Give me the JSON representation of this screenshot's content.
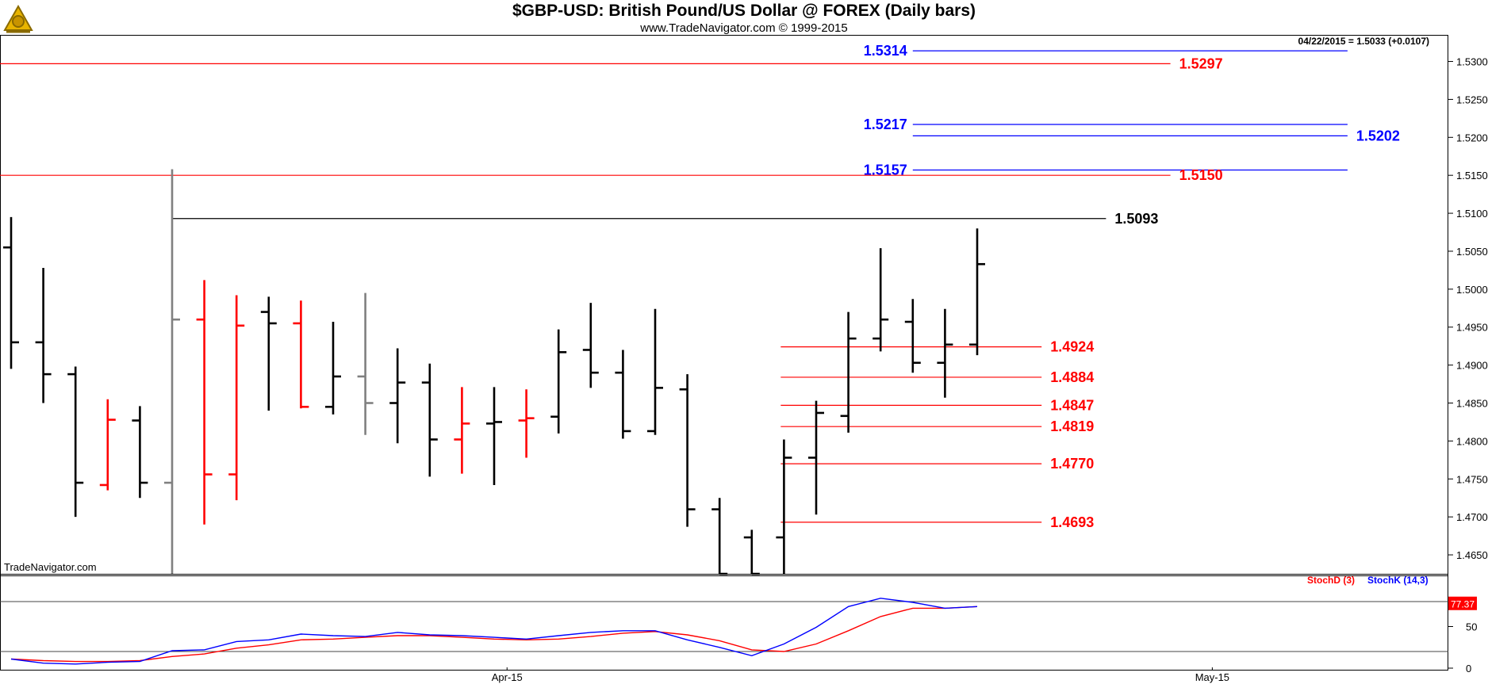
{
  "header": {
    "title": "$GBP-USD:  British Pound/US Dollar @ FOREX  (Daily bars)",
    "subtitle": "www.TradeNavigator.com © 1999-2015"
  },
  "readout": "04/22/2015 = 1.5033 (+0.0107)",
  "watermark": "TradeNavigator.com",
  "colors": {
    "up": "#000000",
    "down": "#ff0000",
    "neutral": "#808080",
    "resistance": "#0000ff",
    "support": "#ff0000",
    "high_line": "#000000",
    "stochD": "#ff0000",
    "stochK": "#0000ff"
  },
  "chart_data": [
    {
      "type": "ohlc",
      "title": "$GBP-USD:  British Pound/US Dollar @ FOREX  (Daily bars)",
      "ylim": [
        1.4625,
        1.5335
      ],
      "yticks": [
        "1.5300",
        "1.5250",
        "1.5200",
        "1.5150",
        "1.5100",
        "1.5050",
        "1.5000",
        "1.4950",
        "1.4900",
        "1.4850",
        "1.4800",
        "1.4750",
        "1.4700",
        "1.4650"
      ],
      "xticks": [
        {
          "label": "Apr-15",
          "bar": 15.4
        },
        {
          "label": "May-15",
          "bar": 37.3
        }
      ],
      "bars": [
        {
          "o": 1.5055,
          "h": 1.5095,
          "l": 1.4895,
          "c": 1.493,
          "dir": "up"
        },
        {
          "o": 1.493,
          "h": 1.5028,
          "l": 1.485,
          "c": 1.4888,
          "dir": "up"
        },
        {
          "o": 1.4888,
          "h": 1.4898,
          "l": 1.47,
          "c": 1.4745,
          "dir": "up"
        },
        {
          "o": 1.4742,
          "h": 1.4855,
          "l": 1.4735,
          "c": 1.4828,
          "dir": "down"
        },
        {
          "o": 1.4827,
          "h": 1.4846,
          "l": 1.4725,
          "c": 1.4745,
          "dir": "up"
        },
        {
          "o": 1.4745,
          "h": 1.5158,
          "l": 1.4625,
          "c": 1.496,
          "dir": "neutral"
        },
        {
          "o": 1.496,
          "h": 1.5012,
          "l": 1.469,
          "c": 1.4756,
          "dir": "down"
        },
        {
          "o": 1.4756,
          "h": 1.4992,
          "l": 1.4722,
          "c": 1.4952,
          "dir": "down"
        },
        {
          "o": 1.497,
          "h": 1.499,
          "l": 1.484,
          "c": 1.4955,
          "dir": "up"
        },
        {
          "o": 1.4955,
          "h": 1.4985,
          "l": 1.4843,
          "c": 1.4845,
          "dir": "down"
        },
        {
          "o": 1.4845,
          "h": 1.4957,
          "l": 1.4835,
          "c": 1.4885,
          "dir": "up"
        },
        {
          "o": 1.4885,
          "h": 1.4995,
          "l": 1.4808,
          "c": 1.485,
          "dir": "neutral"
        },
        {
          "o": 1.485,
          "h": 1.4922,
          "l": 1.4797,
          "c": 1.4877,
          "dir": "up"
        },
        {
          "o": 1.4877,
          "h": 1.4902,
          "l": 1.4753,
          "c": 1.4802,
          "dir": "up"
        },
        {
          "o": 1.4802,
          "h": 1.4871,
          "l": 1.4757,
          "c": 1.4823,
          "dir": "down"
        },
        {
          "o": 1.4823,
          "h": 1.4871,
          "l": 1.4742,
          "c": 1.4825,
          "dir": "up"
        },
        {
          "o": 1.4827,
          "h": 1.4868,
          "l": 1.4778,
          "c": 1.483,
          "dir": "down"
        },
        {
          "o": 1.4832,
          "h": 1.4947,
          "l": 1.481,
          "c": 1.4917,
          "dir": "up"
        },
        {
          "o": 1.492,
          "h": 1.4982,
          "l": 1.487,
          "c": 1.489,
          "dir": "up"
        },
        {
          "o": 1.489,
          "h": 1.492,
          "l": 1.4803,
          "c": 1.4813,
          "dir": "up"
        },
        {
          "o": 1.4813,
          "h": 1.4974,
          "l": 1.4808,
          "c": 1.487,
          "dir": "up"
        },
        {
          "o": 1.4868,
          "h": 1.4888,
          "l": 1.4687,
          "c": 1.471,
          "dir": "up"
        },
        {
          "o": 1.471,
          "h": 1.4725,
          "l": 1.4625,
          "c": 1.4625,
          "dir": "up"
        },
        {
          "o": 1.4673,
          "h": 1.4683,
          "l": 1.4625,
          "c": 1.4625,
          "dir": "up"
        },
        {
          "o": 1.4673,
          "h": 1.4802,
          "l": 1.4625,
          "c": 1.4778,
          "dir": "up"
        },
        {
          "o": 1.4778,
          "h": 1.4853,
          "l": 1.4703,
          "c": 1.4837,
          "dir": "up"
        },
        {
          "o": 1.4833,
          "h": 1.497,
          "l": 1.4811,
          "c": 1.4935,
          "dir": "up"
        },
        {
          "o": 1.4935,
          "h": 1.5054,
          "l": 1.4918,
          "c": 1.496,
          "dir": "up"
        },
        {
          "o": 1.4957,
          "h": 1.4987,
          "l": 1.489,
          "c": 1.4903,
          "dir": "up"
        },
        {
          "o": 1.4903,
          "h": 1.4974,
          "l": 1.4857,
          "c": 1.4927,
          "dir": "up"
        },
        {
          "o": 1.4927,
          "h": 1.508,
          "l": 1.4913,
          "c": 1.5033,
          "dir": "up"
        }
      ],
      "levels": [
        {
          "value": 1.5314,
          "label": "1.5314",
          "kind": "resistance",
          "from_bar": 28.0,
          "to_bar": 41.5,
          "label_side": "left"
        },
        {
          "value": 1.5297,
          "label": "1.5297",
          "kind": "support",
          "from_bar": -0.5,
          "to_bar": 36.0,
          "label_side": "right"
        },
        {
          "value": 1.5217,
          "label": "1.5217",
          "kind": "resistance",
          "from_bar": 28.0,
          "to_bar": 41.5,
          "label_side": "left"
        },
        {
          "value": 1.5202,
          "label": "1.5202",
          "kind": "resistance",
          "from_bar": 28.0,
          "to_bar": 41.5,
          "label_side": "right"
        },
        {
          "value": 1.5157,
          "label": "1.5157",
          "kind": "resistance",
          "from_bar": 28.0,
          "to_bar": 41.5,
          "label_side": "left"
        },
        {
          "value": 1.515,
          "label": "1.5150",
          "kind": "support",
          "from_bar": -0.5,
          "to_bar": 36.0,
          "label_side": "right"
        },
        {
          "value": 1.5093,
          "label": "1.5093",
          "kind": "high_line",
          "from_bar": 5.0,
          "to_bar": 34.0,
          "label_side": "right"
        },
        {
          "value": 1.4924,
          "label": "1.4924",
          "kind": "support",
          "from_bar": 23.9,
          "to_bar": 32.0,
          "label_side": "right"
        },
        {
          "value": 1.4884,
          "label": "1.4884",
          "kind": "support",
          "from_bar": 23.9,
          "to_bar": 32.0,
          "label_side": "right"
        },
        {
          "value": 1.4847,
          "label": "1.4847",
          "kind": "support",
          "from_bar": 23.9,
          "to_bar": 32.0,
          "label_side": "right"
        },
        {
          "value": 1.4819,
          "label": "1.4819",
          "kind": "support",
          "from_bar": 23.9,
          "to_bar": 32.0,
          "label_side": "right"
        },
        {
          "value": 1.477,
          "label": "1.4770",
          "kind": "support",
          "from_bar": 23.9,
          "to_bar": 32.0,
          "label_side": "right"
        },
        {
          "value": 1.4693,
          "label": "1.4693",
          "kind": "support",
          "from_bar": 23.9,
          "to_bar": 32.0,
          "label_side": "right"
        }
      ]
    },
    {
      "type": "line",
      "legend": [
        "StochD (3)",
        "StochK (14,3)"
      ],
      "ylim": [
        0,
        100
      ],
      "yticks": [
        "50",
        "0"
      ],
      "reference_lines": [
        20,
        80
      ],
      "last_value": "77.37",
      "series": [
        {
          "name": "StochD (3)",
          "values": [
            11,
            9,
            8,
            8,
            9,
            14,
            17,
            24,
            28,
            34,
            35,
            37,
            39,
            39,
            37,
            35,
            34,
            35,
            38,
            42,
            44,
            40,
            33,
            22,
            20,
            29,
            45,
            62,
            72,
            72,
            74
          ]
        },
        {
          "name": "StochK (14,3)",
          "values": [
            11,
            6,
            5,
            7,
            8,
            21,
            22,
            32,
            34,
            41,
            39,
            38,
            43,
            40,
            39,
            37,
            35,
            39,
            43,
            45,
            45,
            34,
            25,
            15,
            29,
            49,
            74,
            84,
            79,
            72,
            74
          ]
        }
      ]
    }
  ]
}
